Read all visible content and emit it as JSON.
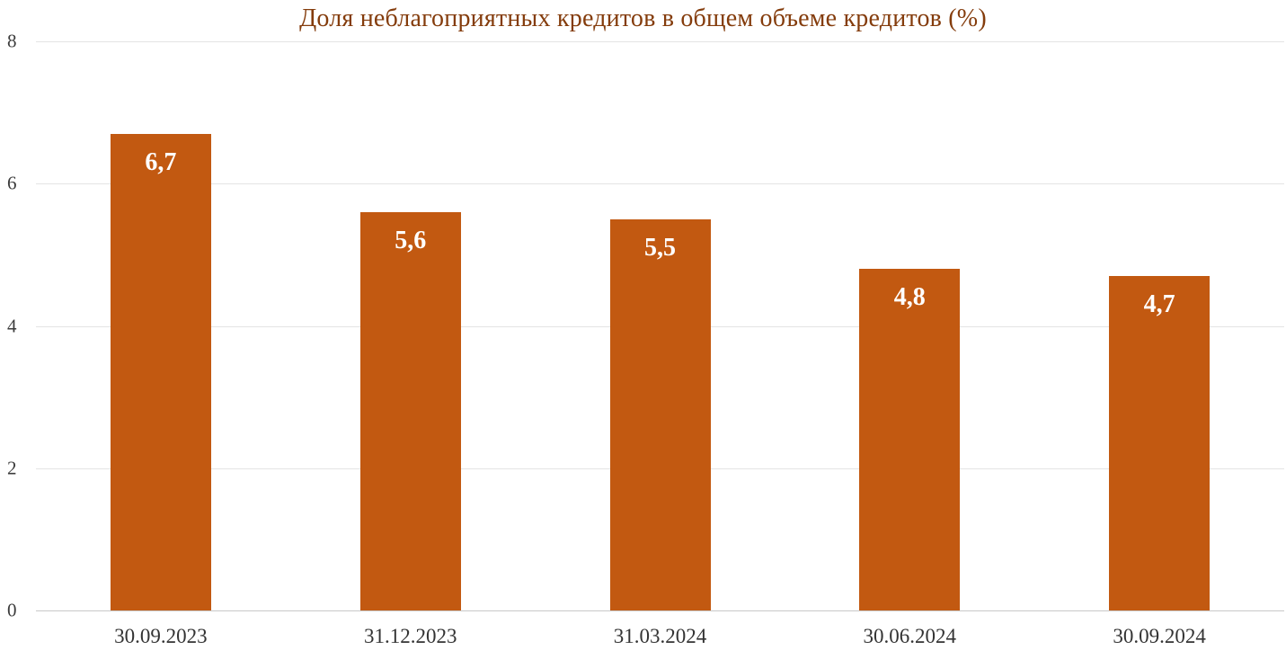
{
  "chart_data": {
    "type": "bar",
    "title": "Доля неблагоприятных кредитов в общем объеме кредитов (%)",
    "categories": [
      "30.09.2023",
      "31.12.2023",
      "31.03.2024",
      "30.06.2024",
      "30.09.2024"
    ],
    "values": [
      6.7,
      5.6,
      5.5,
      4.8,
      4.7
    ],
    "value_labels": [
      "6,7",
      "5,6",
      "5,5",
      "4,8",
      "4,7"
    ],
    "xlabel": "",
    "ylabel": "",
    "ylim": [
      0,
      8
    ],
    "yticks": [
      0,
      2,
      4,
      6,
      8
    ],
    "grid": true,
    "legend": "none",
    "colors": {
      "bar": "#c25911",
      "title": "#843c0c",
      "value_label": "#ffffff",
      "axis_text": "#3b3b3b"
    }
  }
}
